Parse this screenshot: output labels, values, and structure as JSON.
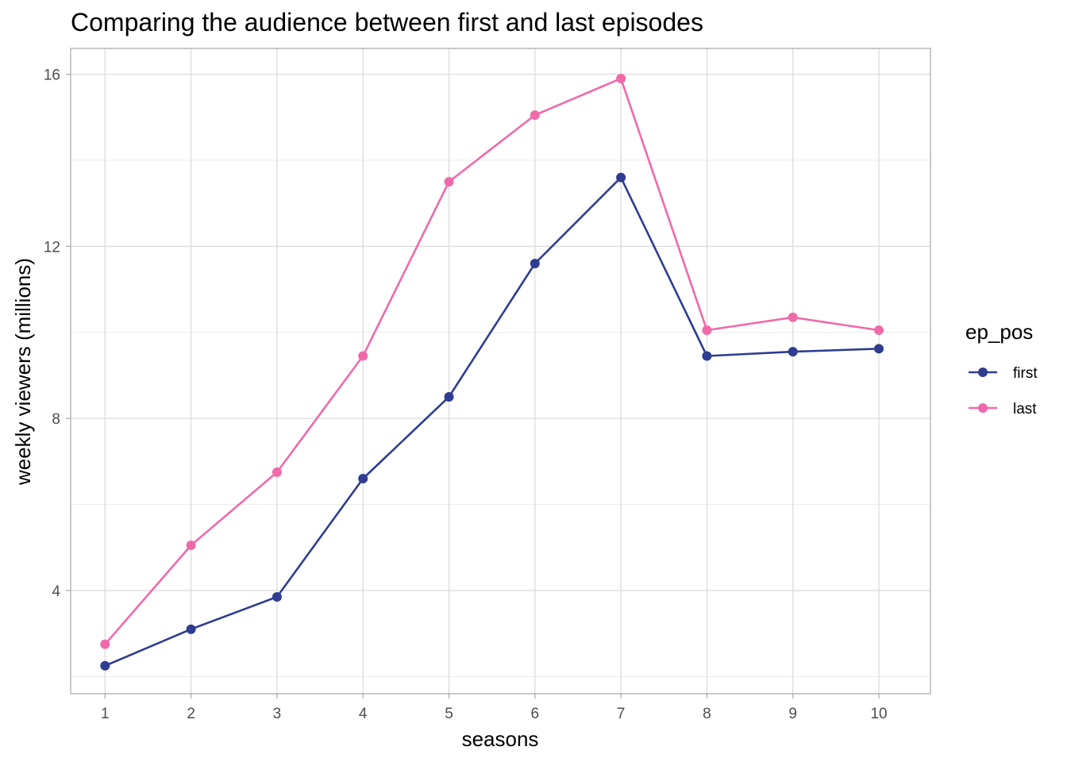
{
  "chart_data": {
    "type": "line",
    "title": "Comparing the audience between first and last episodes",
    "xlabel": "seasons",
    "ylabel": "weekly viewers (millions)",
    "x": [
      1,
      2,
      3,
      4,
      5,
      6,
      7,
      8,
      9,
      10
    ],
    "xticks": [
      "1",
      "2",
      "3",
      "4",
      "5",
      "6",
      "7",
      "8",
      "9",
      "10"
    ],
    "yticks": [
      "4",
      "8",
      "12",
      "16"
    ],
    "xlim": [
      0.6,
      10.6
    ],
    "ylim": [
      1.6,
      16.6
    ],
    "grid": true,
    "legend": {
      "title": "ep_pos",
      "placement": "right"
    },
    "series": [
      {
        "name": "first",
        "color": "#2f3c91",
        "values": [
          2.25,
          3.1,
          3.85,
          6.6,
          8.5,
          11.6,
          13.6,
          9.45,
          9.55,
          9.62
        ]
      },
      {
        "name": "last",
        "color": "#f06aa9",
        "values": [
          2.75,
          5.05,
          6.75,
          9.45,
          13.5,
          15.05,
          15.9,
          10.05,
          10.35,
          10.05
        ]
      }
    ]
  }
}
